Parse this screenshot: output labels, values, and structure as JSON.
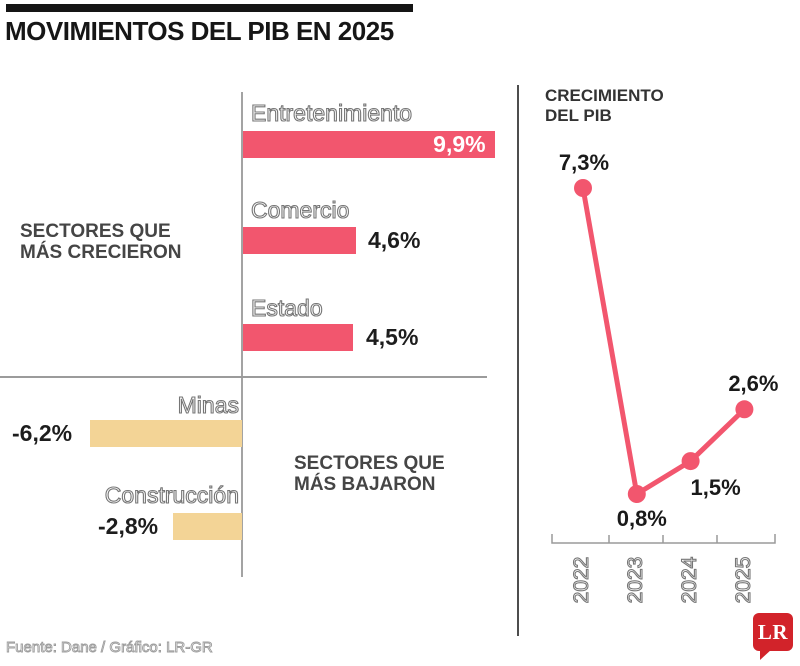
{
  "header": {
    "title": "MOVIMIENTOS DEL PIB EN 2025"
  },
  "colors": {
    "grew_bar": "#f2566e",
    "fell_bar": "#f3d496",
    "line": "#f2566e",
    "logo_red": "#d2232a"
  },
  "chart_data": [
    {
      "type": "bar",
      "orientation": "horizontal",
      "title": "MOVIMIENTOS DEL PIB EN 2025",
      "unit": "%",
      "groups": [
        {
          "label": "SECTORES QUE\nMÁS CRECIERON",
          "categories": [
            "Entretenimiento",
            "Comercio",
            "Estado"
          ],
          "values": [
            9.9,
            4.6,
            4.5
          ],
          "value_labels": [
            "9,9%",
            "4,6%",
            "4,5%"
          ],
          "color": "#f2566e"
        },
        {
          "label": "SECTORES QUE\nMÁS BAJARON",
          "categories": [
            "Minas",
            "Construcción"
          ],
          "values": [
            -6.2,
            -2.8
          ],
          "value_labels": [
            "-6,2%",
            "-2,8%"
          ],
          "color": "#f3d496"
        }
      ]
    },
    {
      "type": "line",
      "title": "CRECIMIENTO DEL PIB",
      "categories": [
        "2022",
        "2023",
        "2024",
        "2025"
      ],
      "values": [
        7.3,
        0.8,
        1.5,
        2.6
      ],
      "value_labels": [
        "7,3%",
        "0,8%",
        "1,5%",
        "2,6%"
      ],
      "color": "#f2566e",
      "xlabel": "",
      "ylabel": "",
      "legend": "none",
      "grid": false
    }
  ],
  "footer": {
    "source": "Fuente: Dane / Gráfico: LR-GR",
    "logo_text": "LR"
  }
}
